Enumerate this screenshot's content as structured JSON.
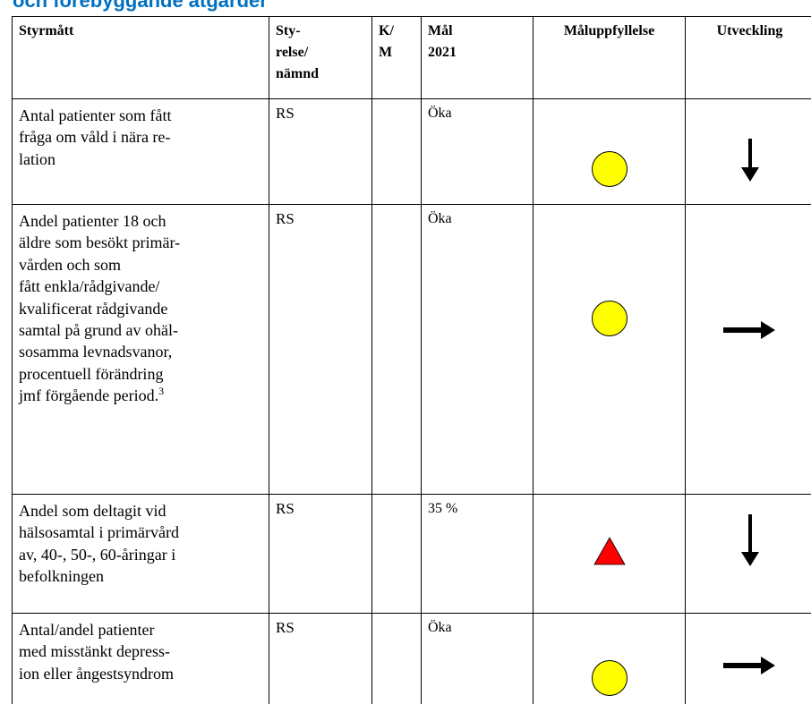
{
  "heading": "och förebyggande åtgärder",
  "table": {
    "header": [
      "Styrmått",
      "Sty-\nrelse/\nnämnd",
      "K/\nM",
      "Mål\n2021",
      "Måluppfyllelse",
      "Utveckling"
    ],
    "rows": [
      {
        "measure": "Antal patienter som fått\nfråga om våld i nära re-\nlation",
        "board": "RS",
        "target": "Öka"
      },
      {
        "measure": "Andel patienter 18 och\näldre som besökt primär-\nvården och som\nfått enkla/rådgivande/\nkvalificerat rådgivande\nsamtal på grund av ohäl-\nsosamma levnadsvanor,\nprocentuell förändring\njmf förgående period.",
        "footnote": "3",
        "board": "RS",
        "target": "Öka"
      },
      {
        "measure": "Andel som deltagit vid\nhälsosamtal i primärvård\nav, 40-, 50-, 60-åringar i\nbefolkningen",
        "board": "RS",
        "target": "35 %"
      },
      {
        "measure": "Antal/andel patienter\nmed misstänkt depress-\nion eller ångestsyndrom",
        "board": "RS",
        "target": "Öka"
      }
    ]
  }
}
